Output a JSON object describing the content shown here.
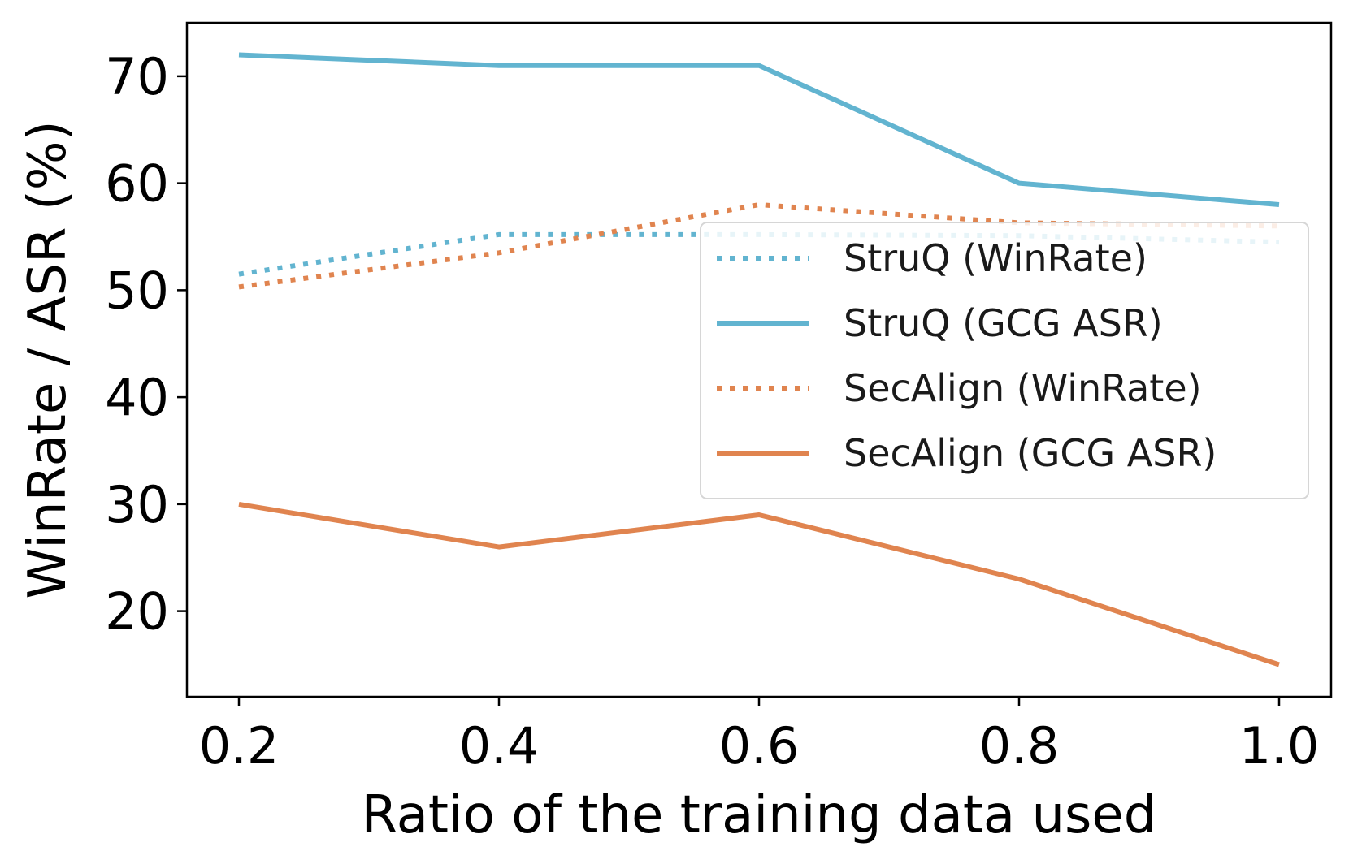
{
  "chart_data": {
    "type": "line",
    "title": "",
    "xlabel": "Ratio of the training data used",
    "ylabel": "WinRate / ASR (%)",
    "x": [
      0.2,
      0.4,
      0.6,
      0.8,
      1.0
    ],
    "xticks": [
      "0.2",
      "0.4",
      "0.6",
      "0.8",
      "1.0"
    ],
    "yticks": [
      "20",
      "30",
      "40",
      "50",
      "60",
      "70"
    ],
    "xlim": [
      0.16,
      1.04
    ],
    "ylim": [
      12,
      75
    ],
    "grid": false,
    "legend_position": "center-right",
    "series": [
      {
        "name": "StruQ (WinRate)",
        "style": "dotted",
        "color": "#62b4d0",
        "values": [
          51.5,
          55.2,
          55.2,
          55.1,
          54.5
        ]
      },
      {
        "name": "StruQ (GCG ASR)",
        "style": "solid",
        "color": "#62b4d0",
        "values": [
          72,
          71,
          71,
          60,
          58
        ]
      },
      {
        "name": "SecAlign (WinRate)",
        "style": "dotted",
        "color": "#e0844f",
        "values": [
          50.3,
          53.5,
          58,
          56.3,
          56
        ]
      },
      {
        "name": "SecAlign (GCG ASR)",
        "style": "solid",
        "color": "#e0844f",
        "values": [
          30,
          26,
          29,
          23,
          15
        ]
      }
    ]
  }
}
